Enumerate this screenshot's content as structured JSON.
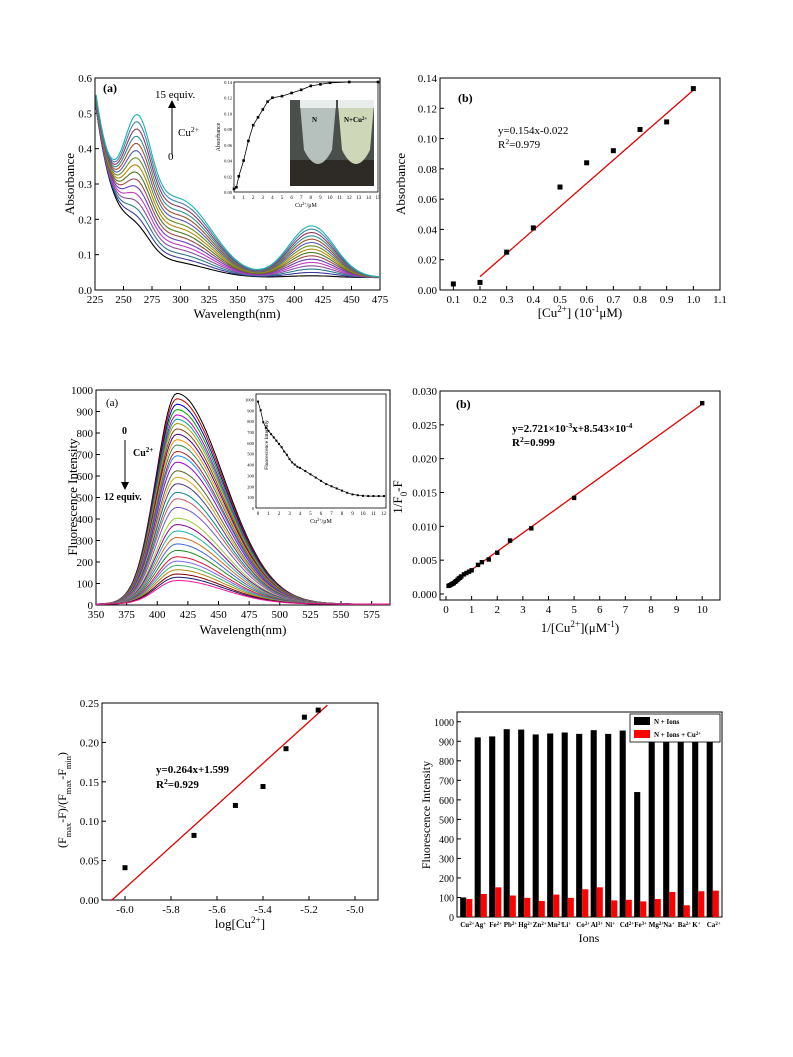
{
  "chart_data": [
    {
      "id": "uv-abs",
      "type": "line",
      "panel_label": "(a)",
      "xlabel": "Wavelength(nm)",
      "ylabel": "Absorbance",
      "xlim": [
        225,
        475
      ],
      "ylim": [
        0.0,
        0.6
      ],
      "xticks": [
        "225",
        "250",
        "275",
        "300",
        "325",
        "350",
        "375",
        "400",
        "425",
        "450",
        "475"
      ],
      "yticks": [
        "0.0",
        "0.1",
        "0.2",
        "0.3",
        "0.4",
        "0.5",
        "0.6"
      ],
      "annotation_top": "15 equiv.",
      "annotation_ion": "Cu",
      "annotation_ion_sup": "2+",
      "annotation_bottom": "0",
      "series_colors": [
        "#000000",
        "#3b3b9a",
        "#2a7a8a",
        "#8a4fa0",
        "#c23cc2",
        "#6a3db8",
        "#9a4a4a",
        "#4a7a2a",
        "#b8860b",
        "#6b8e23",
        "#5a5ab0",
        "#a0522d",
        "#2f8f8f",
        "#8b3a62",
        "#4682b4",
        "#20b2aa"
      ],
      "inset": {
        "xlabel": "Cu",
        "xlabel_sup": "2+",
        "xlabel_unit": "/μM",
        "ylabel": "Absorbance",
        "xticks": [
          "0",
          "1",
          "2",
          "3",
          "4",
          "5",
          "6",
          "7",
          "8",
          "9",
          "10",
          "11",
          "12",
          "13",
          "14",
          "15"
        ],
        "yticks": [
          "0.00",
          "0.02",
          "0.04",
          "0.06",
          "0.08",
          "0.10",
          "0.12",
          "0.14"
        ],
        "x": [
          0,
          0.25,
          0.5,
          1,
          1.5,
          2,
          2.5,
          3,
          3.5,
          4,
          5,
          6,
          7,
          8,
          9,
          10,
          12,
          15
        ],
        "y": [
          0.004,
          0.006,
          0.02,
          0.04,
          0.065,
          0.085,
          0.095,
          0.105,
          0.115,
          0.12,
          0.122,
          0.126,
          0.13,
          0.135,
          0.137,
          0.139,
          0.14,
          0.14
        ],
        "photo_label_left": "N",
        "photo_label_right": "N+Cu",
        "photo_label_right_sup": "2+"
      }
    },
    {
      "id": "abs-linear",
      "type": "scatter",
      "panel_label": "(b)",
      "xlabel": "[Cu",
      "xlabel_sup": "2+",
      "xlabel_tail": "] (10",
      "xlabel_sup2": "-1",
      "xlabel_end": "μM)",
      "ylabel": "Absorbance",
      "xlim": [
        0.05,
        1.1
      ],
      "ylim": [
        0,
        0.14
      ],
      "xticks": [
        "0.1",
        "0.2",
        "0.3",
        "0.4",
        "0.5",
        "0.6",
        "0.7",
        "0.8",
        "0.9",
        "1.0",
        "1.1"
      ],
      "yticks": [
        "0.00",
        "0.02",
        "0.04",
        "0.06",
        "0.08",
        "0.10",
        "0.12",
        "0.14"
      ],
      "x": [
        0.1,
        0.2,
        0.3,
        0.4,
        0.5,
        0.6,
        0.7,
        0.8,
        0.9,
        1.0
      ],
      "y": [
        0.004,
        0.005,
        0.025,
        0.041,
        0.068,
        0.084,
        0.092,
        0.106,
        0.111,
        0.133
      ],
      "fit": {
        "slope": 0.154,
        "intercept": -0.022,
        "x_range": [
          0.2,
          1.0
        ]
      },
      "eq_line": "y=0.154x-0.022",
      "r2_pre": "R",
      "r2_sup": "2",
      "r2_val": "=0.979"
    },
    {
      "id": "fluor-spectra",
      "type": "line",
      "panel_label": "(a)",
      "xlabel": "Wavelength(nm)",
      "ylabel": "Fluorescence Intensity",
      "xlim": [
        350,
        590
      ],
      "ylim": [
        0,
        1000
      ],
      "xticks": [
        "350",
        "375",
        "400",
        "425",
        "450",
        "475",
        "500",
        "525",
        "550",
        "575"
      ],
      "yticks": [
        "0",
        "100",
        "200",
        "300",
        "400",
        "500",
        "600",
        "700",
        "800",
        "900",
        "1000"
      ],
      "annotation_top": "0",
      "annotation_ion": "Cu",
      "annotation_ion_sup": "2+",
      "annotation_bottom": "12 equiv.",
      "peaks": [
        980,
        955,
        930,
        905,
        880,
        860,
        840,
        815,
        790,
        765,
        740,
        710,
        690,
        660,
        620,
        590,
        560,
        520,
        490,
        450,
        400,
        370,
        340,
        310,
        280,
        250,
        220,
        200,
        180,
        160,
        140,
        125,
        110
      ],
      "series_colors": [
        "#000000",
        "#c00000",
        "#0000c0",
        "#00a000",
        "#c000c0",
        "#00a0a0",
        "#a0a000",
        "#8b4513",
        "#4b0082",
        "#ff8c00",
        "#2e8b57",
        "#b22222",
        "#1e90ff",
        "#9400d3",
        "#556b2f",
        "#daa520",
        "#483d8b",
        "#008b8b",
        "#cd5c5c",
        "#6a5acd",
        "#9acd32",
        "#8b008b",
        "#20b2aa",
        "#d2691e",
        "#4169e1",
        "#228b22",
        "#dc143c",
        "#7b68ee",
        "#3cb371",
        "#b8860b",
        "#800000",
        "#191970",
        "#ff1493"
      ],
      "inset": {
        "xlabel": "Cu",
        "xlabel_sup": "2+",
        "xlabel_unit": "/μM",
        "ylabel": "Fluorescence Intensity",
        "xticks": [
          "0",
          "1",
          "2",
          "3",
          "4",
          "5",
          "6",
          "7",
          "8",
          "9",
          "10",
          "11",
          "12"
        ],
        "yticks": [
          "0",
          "100",
          "200",
          "300",
          "400",
          "500",
          "600",
          "700",
          "800",
          "900",
          "1000"
        ],
        "x": [
          0,
          0.25,
          0.5,
          0.75,
          1,
          1.25,
          1.5,
          1.75,
          2,
          2.25,
          2.5,
          2.75,
          3,
          3.25,
          3.5,
          3.75,
          4,
          4.5,
          5,
          5.5,
          6,
          6.5,
          7,
          7.5,
          8,
          8.5,
          9,
          9.5,
          10,
          10.5,
          11,
          11.5,
          12
        ],
        "y": [
          980,
          900,
          790,
          740,
          710,
          680,
          650,
          620,
          590,
          560,
          520,
          490,
          450,
          420,
          400,
          380,
          370,
          340,
          310,
          280,
          250,
          220,
          200,
          180,
          160,
          140,
          125,
          118,
          112,
          110,
          110,
          110,
          110
        ]
      }
    },
    {
      "id": "fluor-linear",
      "type": "scatter",
      "panel_label": "(b)",
      "xlabel": "1/[Cu",
      "xlabel_sup": "2+",
      "xlabel_tail": "](μM",
      "xlabel_sup2": "-1",
      "xlabel_end": ")",
      "ylabel": "1/F",
      "ylabel_sub": "0",
      "ylabel_end": "-F",
      "xlim": [
        0,
        10.5
      ],
      "ylim": [
        0,
        0.03
      ],
      "xticks": [
        "0",
        "1",
        "2",
        "3",
        "4",
        "5",
        "6",
        "7",
        "8",
        "9",
        "10"
      ],
      "yticks": [
        "0.000",
        "0.005",
        "0.010",
        "0.015",
        "0.020",
        "0.025",
        "0.030"
      ],
      "x": [
        0.1,
        0.15,
        0.2,
        0.25,
        0.3,
        0.35,
        0.4,
        0.45,
        0.5,
        0.55,
        0.6,
        0.7,
        0.8,
        0.9,
        1.0,
        1.25,
        1.4,
        1.67,
        2.0,
        2.5,
        3.33,
        5.0,
        10.0
      ],
      "y": [
        0.0012,
        0.0013,
        0.0014,
        0.0015,
        0.0016,
        0.0018,
        0.0019,
        0.0021,
        0.0023,
        0.0024,
        0.0026,
        0.0029,
        0.0031,
        0.0033,
        0.0035,
        0.0043,
        0.0047,
        0.0051,
        0.0061,
        0.0079,
        0.0097,
        0.0142,
        0.0282
      ],
      "fit": {
        "slope": 0.002721,
        "intercept": 0.0008543,
        "x_range": [
          0.1,
          10.0
        ]
      },
      "eq_pre": "y=2.721×10",
      "eq_sup1": "-3",
      "eq_mid": "x+8.543×10",
      "eq_sup2": "-4",
      "r2_pre": "R",
      "r2_sup": "2",
      "r2_val": "=0.999"
    },
    {
      "id": "log-linear",
      "type": "scatter",
      "ylabel_a": "(F",
      "ylabel_a_sub": "max",
      "ylabel_b": "-F)/(F",
      "ylabel_b_sub": "max",
      "ylabel_c": "-F",
      "ylabel_c_sub": "min",
      "ylabel_d": ")",
      "xlabel": "log[Cu",
      "xlabel_sup": "2+",
      "xlabel_end": "]",
      "xlim": [
        -6.1,
        -4.9
      ],
      "ylim": [
        0,
        0.25
      ],
      "xticks": [
        "-6.0",
        "-5.8",
        "-5.6",
        "-5.4",
        "-5.2",
        "-5.0"
      ],
      "yticks": [
        "0.00",
        "0.05",
        "0.10",
        "0.15",
        "0.20",
        "0.25"
      ],
      "x": [
        -6.0,
        -5.7,
        -5.52,
        -5.4,
        -5.3,
        -5.22,
        -5.16
      ],
      "y": [
        0.041,
        0.082,
        0.12,
        0.144,
        0.192,
        0.232,
        0.241
      ],
      "fit": {
        "slope": 0.264,
        "intercept": 1.599,
        "x_range": [
          -6.06,
          -5.12
        ]
      },
      "eq_line": "y=0.264x+1.599",
      "r2_pre": "R",
      "r2_sup": "2",
      "r2_val": "=0.929"
    },
    {
      "id": "ion-selectivity",
      "type": "bar",
      "xlabel": "Ions",
      "ylabel": "Fluorescence Intensity",
      "ylim": [
        0,
        1050
      ],
      "yticks": [
        "0",
        "100",
        "200",
        "300",
        "400",
        "500",
        "600",
        "700",
        "800",
        "900",
        "1000"
      ],
      "categories": [
        {
          "b": "Cu",
          "s": "2+"
        },
        {
          "b": "Ag",
          "s": "+"
        },
        {
          "b": "Fe",
          "s": "2+"
        },
        {
          "b": "Pb",
          "s": "2+"
        },
        {
          "b": "Hg",
          "s": "2+"
        },
        {
          "b": "Zn",
          "s": "2+"
        },
        {
          "b": "Mn",
          "s": "2+"
        },
        {
          "b": "Li",
          "s": "+"
        },
        {
          "b": "Co",
          "s": "2+"
        },
        {
          "b": "Al",
          "s": "3+"
        },
        {
          "b": "Ni",
          "s": "+"
        },
        {
          "b": "Cd",
          "s": "2+"
        },
        {
          "b": "Fe",
          "s": "3+"
        },
        {
          "b": "Mg",
          "s": "2+"
        },
        {
          "b": "Na",
          "s": "+"
        },
        {
          "b": "Ba",
          "s": "2+"
        },
        {
          "b": "K",
          "s": "+"
        },
        {
          "b": "Ca",
          "s": "2+"
        }
      ],
      "series": [
        {
          "name": "N + Ions",
          "color": "#000000",
          "values": [
            100,
            920,
            925,
            962,
            960,
            935,
            940,
            945,
            938,
            957,
            938,
            955,
            640,
            955,
            940,
            938,
            928,
            955
          ]
        },
        {
          "name": "N + Ions + Cu",
          "name_sup": "2+",
          "color": "#ff0000",
          "values": [
            92,
            118,
            152,
            110,
            98,
            82,
            115,
            98,
            142,
            152,
            85,
            88,
            80,
            92,
            128,
            60,
            132,
            135
          ]
        }
      ]
    }
  ]
}
